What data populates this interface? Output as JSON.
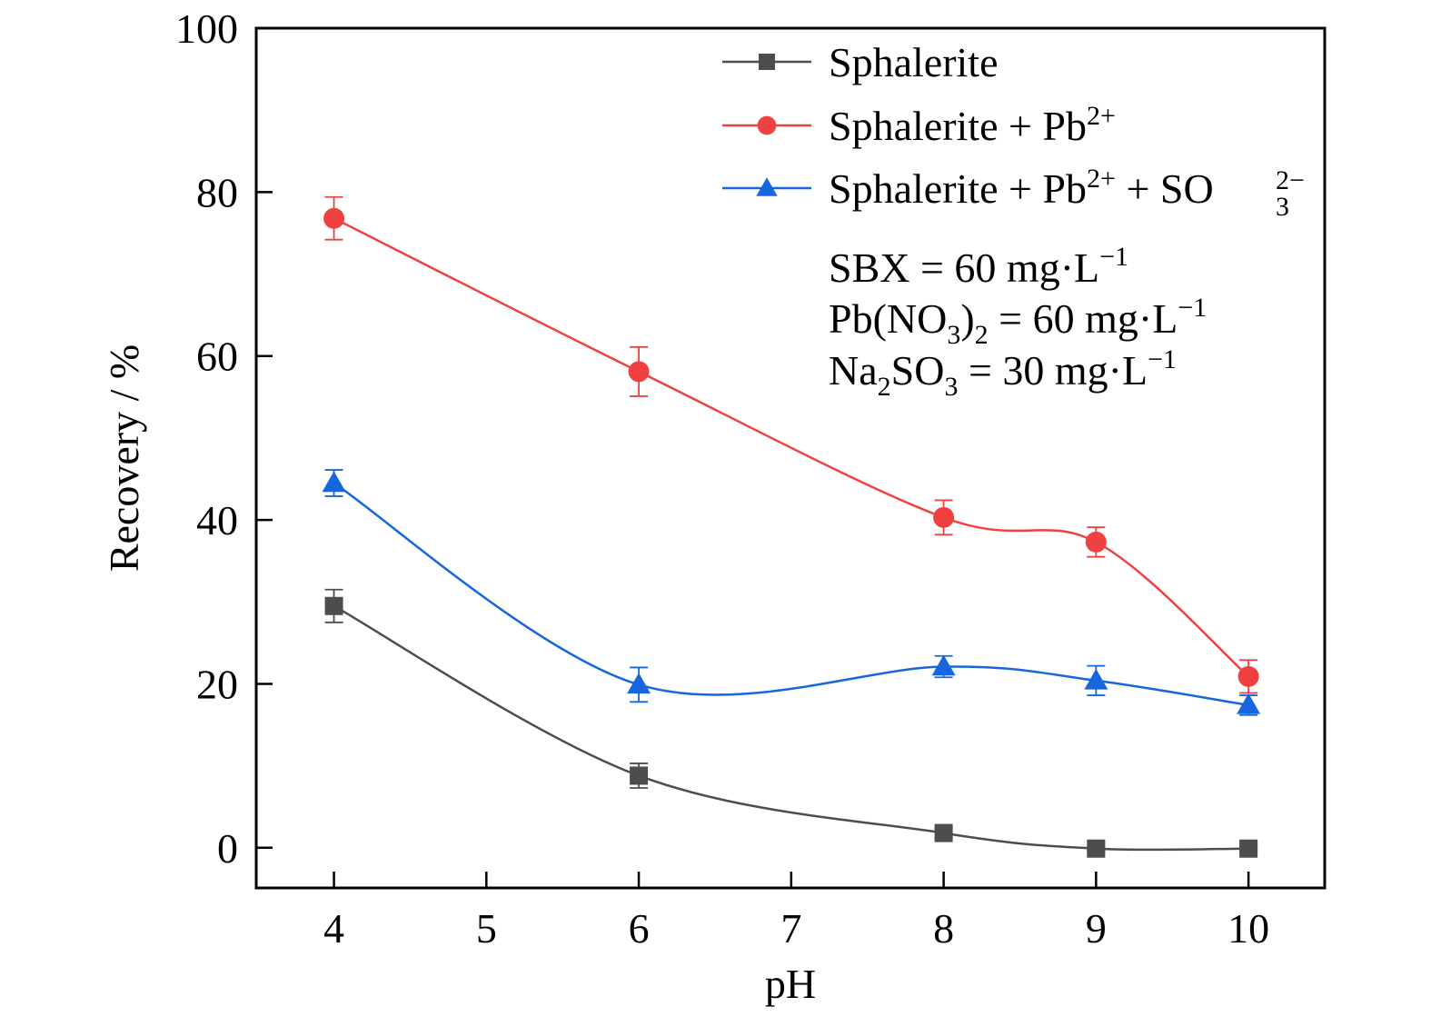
{
  "chart_data": {
    "type": "line",
    "title": "",
    "xlabel": "pH",
    "ylabel": "Recovery / %",
    "xlim": [
      3.49,
      10.5
    ],
    "ylim": [
      -4.9,
      100
    ],
    "x_ticks": [
      4,
      5,
      6,
      7,
      8,
      9,
      10
    ],
    "x_tick_labels": [
      "4",
      "5",
      "6",
      "7",
      "8",
      "9",
      "10"
    ],
    "y_ticks": [
      0,
      20,
      40,
      60,
      80,
      100
    ],
    "y_tick_labels": [
      "0",
      "20",
      "40",
      "60",
      "80",
      "100"
    ],
    "grid": false,
    "legend_position": "top-right",
    "x": [
      4,
      6,
      8,
      9,
      10
    ],
    "series": [
      {
        "name": "Sphalerite",
        "legend_main": "Sphalerite",
        "legend_sup": "",
        "legend_tail": "",
        "marker": "square",
        "color": "#4d4d4d",
        "values": [
          29.5,
          8.8,
          1.8,
          -0.1,
          -0.1
        ],
        "errors": [
          2.0,
          1.5,
          0.6,
          0.3,
          0.3
        ]
      },
      {
        "name": "Sphalerite + Pb2+",
        "legend_main": "Sphalerite + Pb",
        "legend_sup": "2+",
        "legend_tail": "",
        "marker": "circle",
        "color": "#f04141",
        "values": [
          76.8,
          58.1,
          40.3,
          37.3,
          20.9
        ],
        "errors": [
          2.6,
          3.0,
          2.1,
          1.8,
          2.0
        ]
      },
      {
        "name": "Sphalerite + Pb2+ + SO3 2-",
        "legend_main": "Sphalerite + Pb",
        "legend_sup": "2+",
        "legend_tail": " + SO",
        "legend_tail_sub": "3",
        "legend_tail_sup": "2−",
        "marker": "triangle",
        "color": "#1766db",
        "values": [
          44.5,
          19.9,
          22.1,
          20.4,
          17.4
        ],
        "errors": [
          1.6,
          2.1,
          1.3,
          1.8,
          1.2
        ]
      }
    ],
    "annotations": [
      {
        "parts": [
          [
            "t",
            "SBX = 60 mg·L"
          ],
          [
            "sup",
            "−1"
          ]
        ]
      },
      {
        "parts": [
          [
            "t",
            "Pb(NO"
          ],
          [
            "sub",
            "3"
          ],
          [
            "t",
            ")"
          ],
          [
            "sub",
            "2"
          ],
          [
            "t",
            " = 60 mg·L"
          ],
          [
            "sup",
            "−1"
          ]
        ]
      },
      {
        "parts": [
          [
            "t",
            "Na"
          ],
          [
            "sub",
            "2"
          ],
          [
            "t",
            "SO"
          ],
          [
            "sub",
            "3"
          ],
          [
            "t",
            " = 30 mg·L"
          ],
          [
            "sup",
            "−1"
          ]
        ]
      }
    ]
  }
}
